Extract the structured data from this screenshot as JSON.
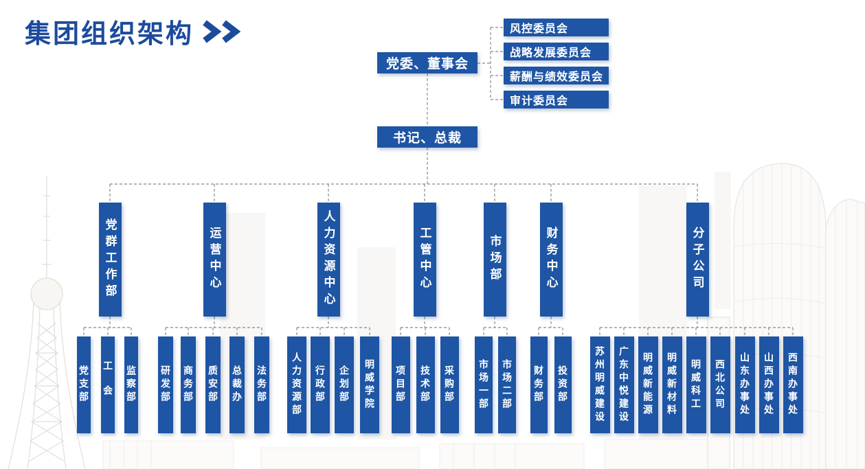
{
  "title": {
    "text": "集团组织架构"
  },
  "colors": {
    "primary_blue": "#1e55a4",
    "title_blue": "#1c4b9c",
    "connector_gray": "#9a9a9a",
    "box_text": "#ffffff"
  },
  "hierarchy": {
    "board": "党委、董事会",
    "committees": [
      "风控委员会",
      "战略发展委员会",
      "薪酬与绩效委员会",
      "审计委员会"
    ],
    "president": "书记、总裁",
    "departments": [
      {
        "label": "党群工作部",
        "children": [
          "党支部",
          "工会",
          "监察部"
        ]
      },
      {
        "label": "运营中心",
        "children": [
          "研发部",
          "商务部",
          "质安部",
          "总裁办",
          "法务部"
        ]
      },
      {
        "label": "人力资源中心",
        "children": [
          "人力资源部",
          "行政部",
          "企划部",
          "明威学院"
        ]
      },
      {
        "label": "工管中心",
        "children": [
          "项目部",
          "技术部",
          "采购部"
        ]
      },
      {
        "label": "市场部",
        "children": [
          "市场一部",
          "市场二部"
        ]
      },
      {
        "label": "财务中心",
        "children": [
          "财务部",
          "投资部"
        ]
      },
      {
        "label": "分子公司",
        "children": [
          "苏州明威建设",
          "广东中悦建设",
          "明威新能源",
          "明威新材料",
          "明威科工",
          "西北公司",
          "山东办事处",
          "山西办事处",
          "西南办事处"
        ]
      }
    ]
  }
}
